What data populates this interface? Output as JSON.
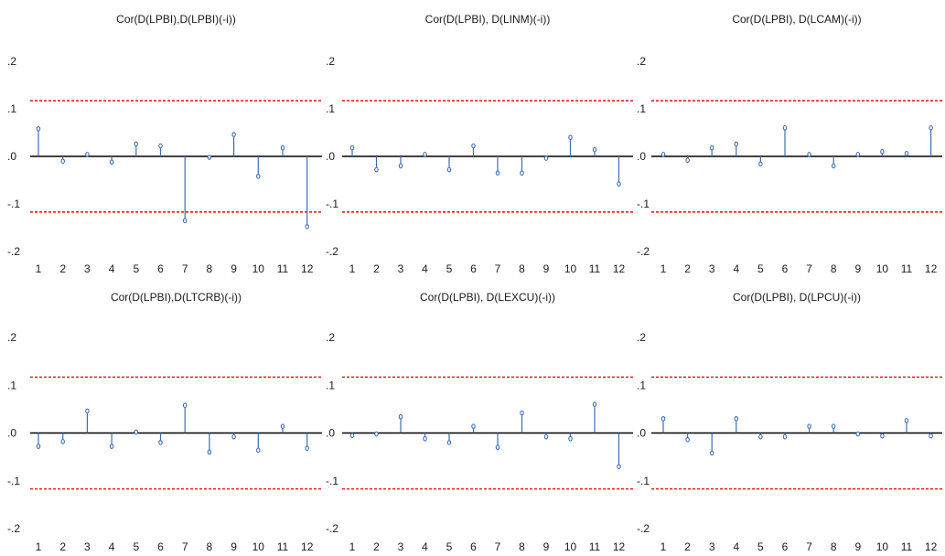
{
  "colors": {
    "stem": "#3b6db5",
    "zero_line": "#000000",
    "bounds": "#e0211b",
    "text": "#1a1a1a"
  },
  "chart_data": [
    {
      "type": "stem",
      "title": "Cor(D(LPBI),D(LPBI)(-i))",
      "categories": [
        "1",
        "2",
        "3",
        "4",
        "5",
        "6",
        "7",
        "8",
        "9",
        "10",
        "11",
        "12"
      ],
      "values": [
        0.058,
        -0.01,
        0.004,
        -0.012,
        0.026,
        0.022,
        -0.135,
        -0.002,
        0.046,
        -0.042,
        0.018,
        -0.148
      ],
      "bounds": [
        0.117,
        -0.117
      ],
      "ylim": [
        -0.2,
        0.2
      ],
      "yticks": [
        ".2",
        ".1",
        ".0",
        "-.1",
        "-.2"
      ],
      "ytick_values": [
        0.2,
        0.1,
        0.0,
        -0.1,
        -0.2
      ]
    },
    {
      "type": "stem",
      "title": "Cor(D(LPBI), D(LINM)(-i))",
      "categories": [
        "1",
        "2",
        "3",
        "4",
        "5",
        "6",
        "7",
        "8",
        "9",
        "10",
        "11",
        "12"
      ],
      "values": [
        0.018,
        -0.028,
        -0.02,
        0.004,
        -0.028,
        0.022,
        -0.035,
        -0.035,
        -0.004,
        0.04,
        0.014,
        -0.058
      ],
      "bounds": [
        0.117,
        -0.117
      ],
      "ylim": [
        -0.2,
        0.2
      ],
      "yticks": [
        ".2",
        ".1",
        ".0",
        "-.1",
        "-.2"
      ],
      "ytick_values": [
        0.2,
        0.1,
        0.0,
        -0.1,
        -0.2
      ]
    },
    {
      "type": "stem",
      "title": "Cor(D(LPBI), D(LCAM)(-i))",
      "categories": [
        "1",
        "2",
        "3",
        "4",
        "5",
        "6",
        "7",
        "8",
        "9",
        "10",
        "11",
        "12"
      ],
      "values": [
        0.004,
        -0.008,
        0.018,
        0.026,
        -0.016,
        0.06,
        0.004,
        -0.02,
        0.004,
        0.01,
        0.006,
        0.06
      ],
      "bounds": [
        0.117,
        -0.117
      ],
      "ylim": [
        -0.2,
        0.2
      ],
      "yticks": [
        ".2",
        ".1",
        ".0",
        "-.1",
        "-.2"
      ],
      "ytick_values": [
        0.2,
        0.1,
        0.0,
        -0.1,
        -0.2
      ]
    },
    {
      "type": "stem",
      "title": "Cor(D(LPBI),D(LTCRB)(-i))",
      "categories": [
        "1",
        "2",
        "3",
        "4",
        "5",
        "6",
        "7",
        "8",
        "9",
        "10",
        "11",
        "12"
      ],
      "values": [
        -0.028,
        -0.018,
        0.046,
        -0.028,
        0.002,
        -0.02,
        0.058,
        -0.04,
        -0.008,
        -0.036,
        0.014,
        -0.032
      ],
      "bounds": [
        0.117,
        -0.117
      ],
      "ylim": [
        -0.2,
        0.2
      ],
      "yticks": [
        ".2",
        ".1",
        ".0",
        "-.1",
        "-.2"
      ],
      "ytick_values": [
        0.2,
        0.1,
        0.0,
        -0.1,
        -0.2
      ]
    },
    {
      "type": "stem",
      "title": "Cor(D(LPBI), D(LEXCU)(-i))",
      "categories": [
        "1",
        "2",
        "3",
        "4",
        "5",
        "6",
        "7",
        "8",
        "9",
        "10",
        "11",
        "12"
      ],
      "values": [
        -0.005,
        -0.002,
        0.034,
        -0.012,
        -0.02,
        0.014,
        -0.03,
        0.042,
        -0.008,
        -0.012,
        0.06,
        -0.07
      ],
      "bounds": [
        0.117,
        -0.117
      ],
      "ylim": [
        -0.2,
        0.2
      ],
      "yticks": [
        ".2",
        ".1",
        ".0",
        "-.1",
        "-.2"
      ],
      "ytick_values": [
        0.2,
        0.1,
        0.0,
        -0.1,
        -0.2
      ]
    },
    {
      "type": "stem",
      "title": "Cor(D(LPBI), D(LPCU)(-i))",
      "categories": [
        "1",
        "2",
        "3",
        "4",
        "5",
        "6",
        "7",
        "8",
        "9",
        "10",
        "11",
        "12"
      ],
      "values": [
        0.03,
        -0.014,
        -0.042,
        0.03,
        -0.008,
        -0.008,
        0.014,
        0.014,
        -0.002,
        -0.006,
        0.026,
        -0.006
      ],
      "bounds": [
        0.117,
        -0.117
      ],
      "ylim": [
        -0.2,
        0.2
      ],
      "yticks": [
        ".2",
        ".1",
        ".0",
        "-.1",
        "-.2"
      ],
      "ytick_values": [
        0.2,
        0.1,
        0.0,
        -0.1,
        -0.2
      ]
    }
  ]
}
